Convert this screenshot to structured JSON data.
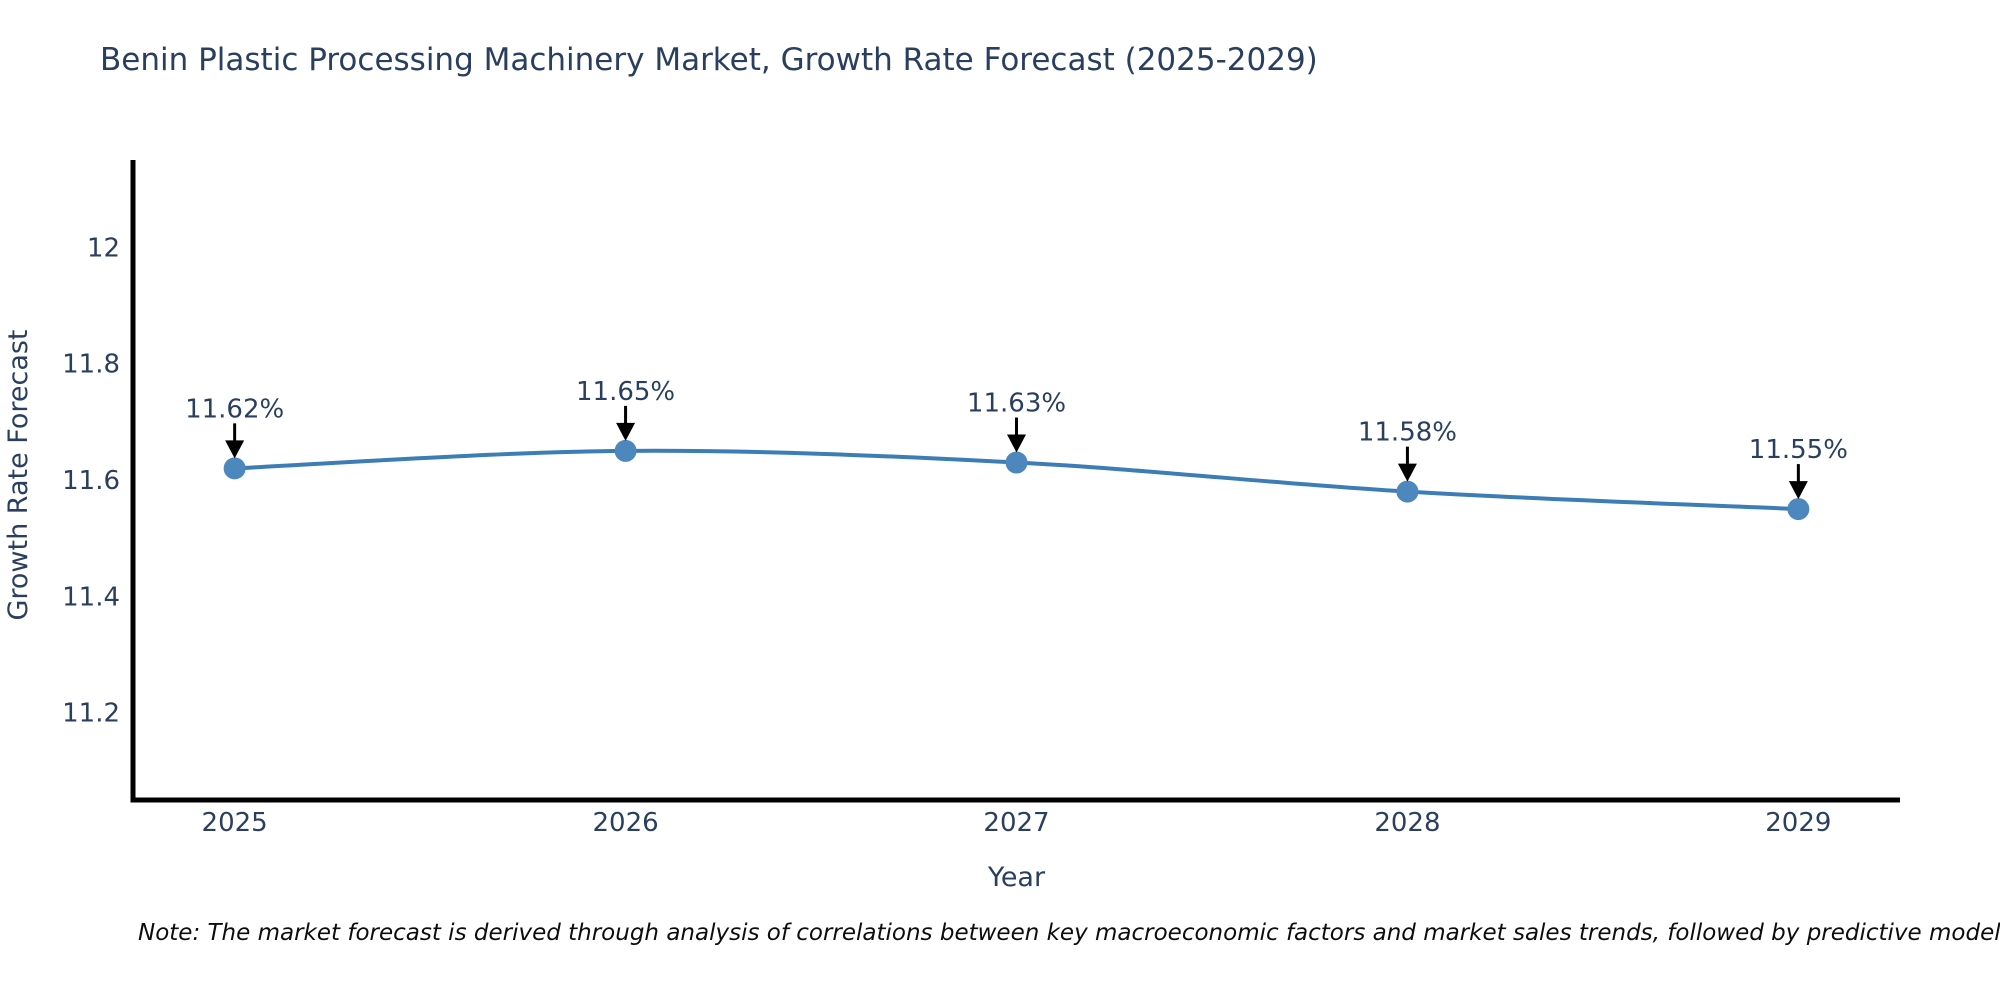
{
  "chart_data": {
    "type": "line",
    "title": "Benin Plastic Processing Machinery Market, Growth Rate Forecast (2025-2029)",
    "xlabel": "Year",
    "ylabel": "Growth Rate Forecast",
    "x": [
      2025,
      2026,
      2027,
      2028,
      2029
    ],
    "x_ticks": [
      "2025",
      "2026",
      "2027",
      "2028",
      "2029"
    ],
    "y_ticks": [
      12,
      11.8,
      11.6,
      11.4,
      11.2
    ],
    "series": [
      {
        "name": "Growth Rate Forecast",
        "values": [
          11.62,
          11.65,
          11.63,
          11.58,
          11.55
        ]
      }
    ],
    "point_labels": [
      "11.62%",
      "11.65%",
      "11.63%",
      "11.58%",
      "11.55%"
    ],
    "xlim": [
      2024.74,
      2029.26
    ],
    "ylim": [
      11.05,
      12.15
    ],
    "grid": false,
    "legend": "none",
    "line_color": "#3d7db6",
    "marker_color": "#4c87be",
    "axis_color": "#000000",
    "text_color": "#2a3f5f",
    "annotation_arrow_color": "#000000"
  },
  "footer": {
    "note": "Note: The market forecast is derived through analysis of correlations between key macroeconomic factors and market sales trends, followed by predictive modeling to project future sal"
  }
}
